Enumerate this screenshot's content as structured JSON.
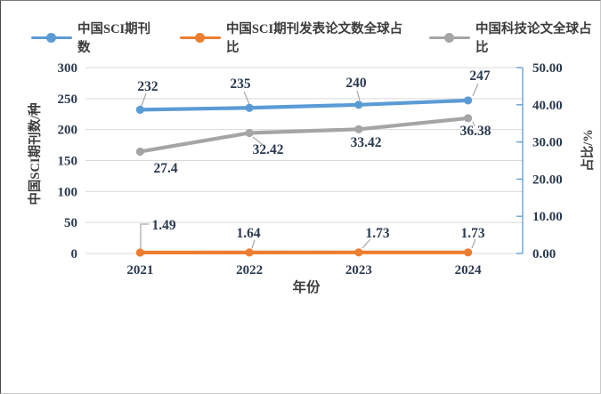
{
  "legend": {
    "items": [
      {
        "label": "中国SCI期刊数",
        "color": "#5B9BD5"
      },
      {
        "label": "中国SCI期刊发表论文数全球占比",
        "color": "#ED7D31"
      },
      {
        "label": "中国科技论文全球占比",
        "color": "#A5A5A5"
      }
    ]
  },
  "chart_data": {
    "type": "line",
    "title": "",
    "x_categories": [
      "2021",
      "2022",
      "2023",
      "2024"
    ],
    "xlabel": "年份",
    "grid": "horizontal",
    "legend_position": "top",
    "left_axis": {
      "label": "中国SCI期刊数/种",
      "min": 0,
      "max": 300,
      "ticks": [
        "300",
        "250",
        "200",
        "150",
        "100",
        "50",
        "0"
      ]
    },
    "right_axis": {
      "label": "占比/%",
      "min": 0,
      "max": 50,
      "ticks": [
        "50.00",
        "40.00",
        "30.00",
        "20.00",
        "10.00",
        "0.00"
      ],
      "axis_color": "#5B9BD5"
    },
    "series": [
      {
        "name": "中国SCI期刊数",
        "axis": "left",
        "color": "#5B9BD5",
        "values": [
          232,
          235,
          240,
          247
        ],
        "labels": [
          "232",
          "235",
          "240",
          "247"
        ]
      },
      {
        "name": "中国SCI期刊发表论文数全球占比",
        "axis": "left",
        "color": "#ED7D31",
        "values": [
          1.49,
          1.64,
          1.73,
          1.73
        ],
        "labels": [
          "1.49",
          "1.64",
          "1.73",
          "1.73"
        ]
      },
      {
        "name": "中国科技论文全球占比",
        "axis": "right",
        "color": "#A5A5A5",
        "values": [
          27.4,
          32.42,
          33.42,
          36.38
        ],
        "labels": [
          "27.4",
          "32.42",
          "33.42",
          "36.38"
        ]
      }
    ],
    "colors": {
      "gridline": "#D9D9D9",
      "leader_line": "#A6A6A6",
      "number_text": "#2b3a50",
      "cjk_text": "#3d3d3d"
    }
  }
}
